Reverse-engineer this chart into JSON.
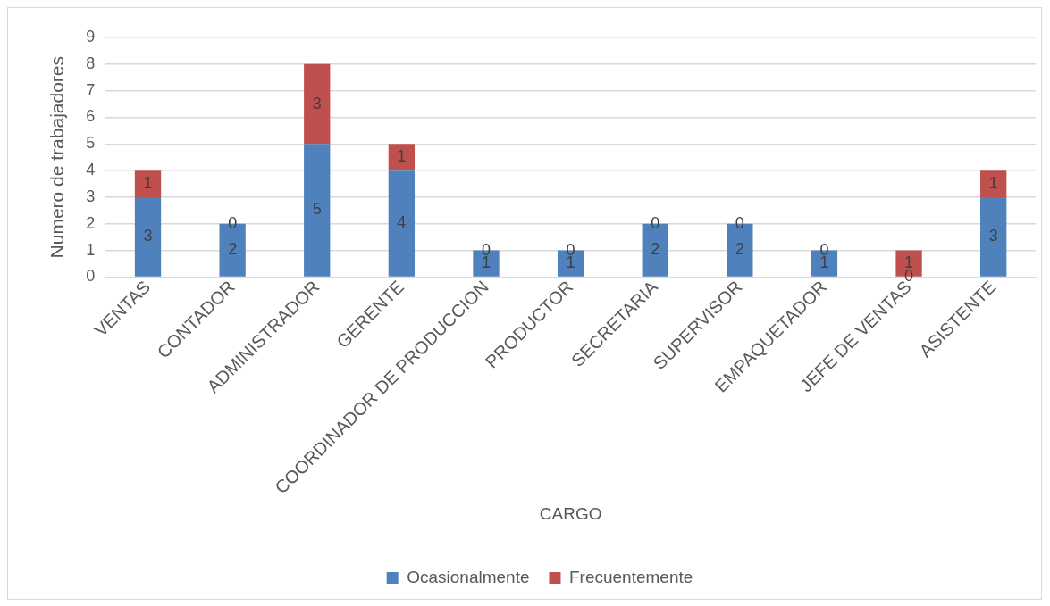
{
  "chart_data": {
    "type": "bar",
    "xlabel": "CARGO",
    "ylabel": "Numero de trabajadores",
    "categories": [
      "VENTAS",
      "CONTADOR",
      "ADMINISTRADOR",
      "GERENTE",
      "COORDINADOR DE PRODUCCION",
      "PRODUCTOR",
      "SECRETARIA",
      "SUPERVISOR",
      "EMPAQUETADOR",
      "JEFE DE VENTAS",
      "ASISTENTE"
    ],
    "series": [
      {
        "name": "Ocasionalmente",
        "color": "#4f81bd",
        "values": [
          3,
          2,
          5,
          4,
          1,
          1,
          2,
          2,
          1,
          0,
          3
        ]
      },
      {
        "name": "Frecuentemente",
        "color": "#c0504d",
        "values": [
          1,
          0,
          3,
          1,
          0,
          0,
          0,
          0,
          0,
          1,
          1
        ]
      }
    ],
    "stacked": true,
    "ylim": [
      0,
      9
    ],
    "yticks": [
      0,
      1,
      2,
      3,
      4,
      5,
      6,
      7,
      8,
      9
    ],
    "grid": "y",
    "legend": "bottom",
    "data_labels": true
  }
}
